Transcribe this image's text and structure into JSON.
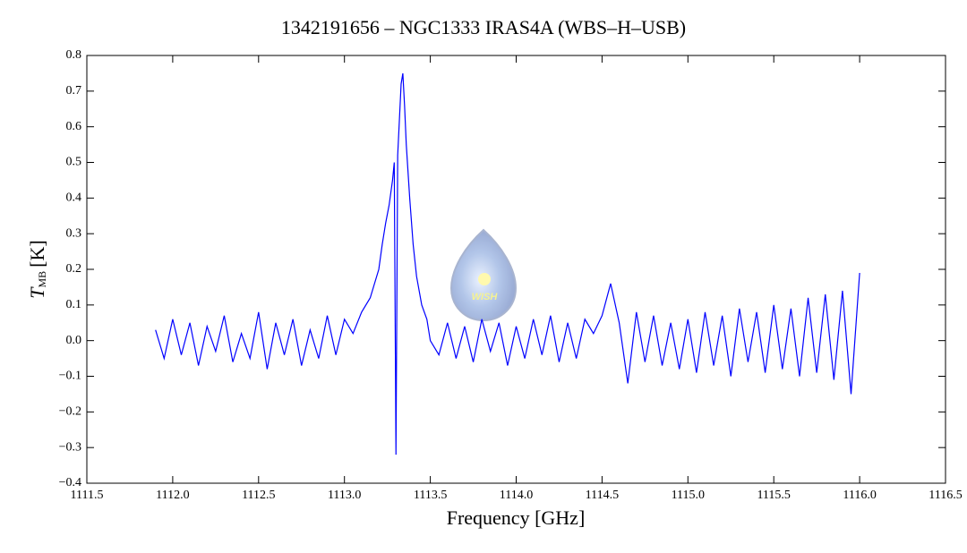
{
  "chart_data": {
    "type": "line",
    "title": "1342191656 – NGC1333 IRAS4A (WBS–H–USB)",
    "xlabel": "Frequency [GHz]",
    "ylabel": {
      "symbol": "T",
      "subscript": "MB",
      "unit": "[K]"
    },
    "color": "#0000ff",
    "x": [
      1111.9,
      1111.95,
      1112,
      1112.05,
      1112.1,
      1112.15,
      1112.2,
      1112.25,
      1112.3,
      1112.35,
      1112.4,
      1112.45,
      1112.5,
      1112.55,
      1112.6,
      1112.65,
      1112.7,
      1112.75,
      1112.8,
      1112.85,
      1112.9,
      1112.95,
      1113,
      1113.05,
      1113.1,
      1113.15,
      1113.2,
      1113.22,
      1113.24,
      1113.26,
      1113.28,
      1113.29,
      1113.3,
      1113.31,
      1113.32,
      1113.33,
      1113.34,
      1113.35,
      1113.36,
      1113.38,
      1113.4,
      1113.42,
      1113.45,
      1113.48,
      1113.5,
      1113.55,
      1113.6,
      1113.65,
      1113.7,
      1113.75,
      1113.8,
      1113.85,
      1113.9,
      1113.95,
      1114,
      1114.05,
      1114.1,
      1114.15,
      1114.2,
      1114.25,
      1114.3,
      1114.35,
      1114.4,
      1114.45,
      1114.5,
      1114.55,
      1114.6,
      1114.65,
      1114.7,
      1114.75,
      1114.8,
      1114.85,
      1114.9,
      1114.95,
      1115,
      1115.05,
      1115.1,
      1115.15,
      1115.2,
      1115.25,
      1115.3,
      1115.35,
      1115.4,
      1115.45,
      1115.5,
      1115.55,
      1115.6,
      1115.65,
      1115.7,
      1115.75,
      1115.8,
      1115.85,
      1115.9,
      1115.95,
      1116
    ],
    "values": [
      0.03,
      -0.05,
      0.06,
      -0.04,
      0.05,
      -0.07,
      0.04,
      -0.03,
      0.07,
      -0.06,
      0.02,
      -0.05,
      0.08,
      -0.08,
      0.05,
      -0.04,
      0.06,
      -0.07,
      0.03,
      -0.05,
      0.07,
      -0.04,
      0.06,
      0.02,
      0.08,
      0.12,
      0.2,
      0.27,
      0.33,
      0.38,
      0.45,
      0.5,
      -0.32,
      0.52,
      0.62,
      0.72,
      0.75,
      0.66,
      0.55,
      0.4,
      0.27,
      0.18,
      0.1,
      0.06,
      0.0,
      -0.04,
      0.05,
      -0.05,
      0.04,
      -0.06,
      0.06,
      -0.03,
      0.05,
      -0.07,
      0.04,
      -0.05,
      0.06,
      -0.04,
      0.07,
      -0.06,
      0.05,
      -0.05,
      0.06,
      0.02,
      0.07,
      0.16,
      0.05,
      -0.12,
      0.08,
      -0.06,
      0.07,
      -0.07,
      0.05,
      -0.08,
      0.06,
      -0.09,
      0.08,
      -0.07,
      0.07,
      -0.1,
      0.09,
      -0.06,
      0.08,
      -0.09,
      0.1,
      -0.08,
      0.09,
      -0.1,
      0.12,
      -0.09,
      0.13,
      -0.11,
      0.14,
      -0.15,
      0.19
    ],
    "xlim": [
      1111.5,
      1116.5
    ],
    "xticks": [
      1111.5,
      {
        "value": 1112,
        "label": "1112.0"
      },
      1112.5,
      {
        "value": 1113,
        "label": "1113.0"
      },
      1113.5,
      {
        "value": 1114,
        "label": "1114.0"
      },
      1114.5,
      {
        "value": 1115,
        "label": "1115.0"
      },
      1115.5,
      {
        "value": 1116,
        "label": "1116.0"
      },
      1116.5
    ],
    "ylim": [
      -0.4,
      0.8
    ],
    "yticks": [
      {
        "value": -0.4,
        "label": "−0.4"
      },
      {
        "value": -0.3,
        "label": "−0.3"
      },
      {
        "value": -0.2,
        "label": "−0.2"
      },
      {
        "value": -0.1,
        "label": "−0.1"
      },
      {
        "value": 0,
        "label": "0.0"
      },
      0.1,
      0.2,
      0.3,
      0.4,
      0.5,
      0.6,
      0.7,
      0.8
    ]
  },
  "logo": {
    "text": "WISH"
  }
}
